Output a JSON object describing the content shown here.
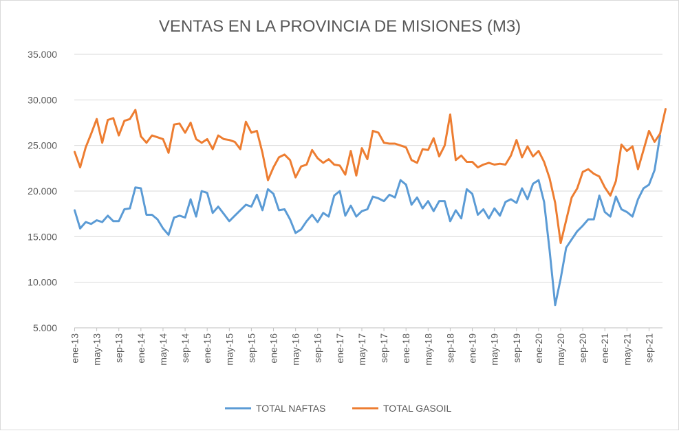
{
  "chart_data": {
    "type": "line",
    "title": "VENTAS EN LA PROVINCIA DE MISIONES (M3)",
    "ylim": [
      5000,
      35000
    ],
    "yticks": [
      5000,
      10000,
      15000,
      20000,
      25000,
      30000,
      35000
    ],
    "ytick_labels": [
      "5.000",
      "10.000",
      "15.000",
      "20.000",
      "25.000",
      "30.000",
      "35.000"
    ],
    "grid": true,
    "legend_position": "bottom-center",
    "xtick_labels": [
      "ene-13",
      "may-13",
      "sep-13",
      "ene-14",
      "may-14",
      "sep-14",
      "ene-15",
      "may-15",
      "sep-15",
      "ene-16",
      "may-16",
      "sep-16",
      "ene-17",
      "may-17",
      "sep-17",
      "ene-18",
      "may-18",
      "sep-18",
      "ene-19",
      "may-19",
      "sep-19",
      "ene-20",
      "may-20",
      "sep-20",
      "ene-21",
      "may-21",
      "sep-21"
    ],
    "series": [
      {
        "name": "TOTAL NAFTAS",
        "color": "#5b9bd5",
        "values": [
          17900,
          15900,
          16600,
          16400,
          16800,
          16600,
          17300,
          16700,
          16700,
          18000,
          18100,
          20400,
          20300,
          17400,
          17400,
          16900,
          15900,
          15200,
          17100,
          17300,
          17100,
          19100,
          17200,
          20000,
          19800,
          17600,
          18300,
          17500,
          16700,
          17300,
          17900,
          18500,
          18300,
          19600,
          17900,
          20200,
          19700,
          17900,
          18000,
          16900,
          15400,
          15800,
          16700,
          17400,
          16600,
          17600,
          17200,
          19500,
          20000,
          17300,
          18400,
          17200,
          17800,
          18000,
          19400,
          19200,
          18900,
          19600,
          19300,
          21200,
          20700,
          18500,
          19300,
          18100,
          18900,
          17800,
          18900,
          18900,
          16700,
          17900,
          17000,
          20200,
          19700,
          17400,
          18000,
          17000,
          18100,
          17300,
          18800,
          19100,
          18700,
          20300,
          19100,
          20800,
          21200,
          18800,
          13500,
          7500,
          10400,
          13800,
          14700,
          15600,
          16200,
          16900,
          16900,
          19500,
          17700,
          17200,
          19400,
          18000,
          17700,
          17200,
          19100,
          20300,
          20700,
          22300,
          26100
        ]
      },
      {
        "name": "TOTAL GASOIL",
        "color": "#ed7d31",
        "values": [
          24300,
          22600,
          24800,
          26300,
          27900,
          25300,
          27800,
          28000,
          26100,
          27700,
          27900,
          28900,
          26000,
          25300,
          26100,
          25900,
          25700,
          24200,
          27300,
          27400,
          26400,
          27500,
          25700,
          25300,
          25700,
          24600,
          26100,
          25700,
          25600,
          25400,
          24600,
          27600,
          26400,
          26600,
          24200,
          21200,
          22600,
          23700,
          24000,
          23400,
          21500,
          22700,
          22900,
          24500,
          23600,
          23100,
          23500,
          22900,
          22800,
          21800,
          24400,
          21700,
          24700,
          23500,
          26600,
          26400,
          25300,
          25200,
          25200,
          25000,
          24800,
          23400,
          23100,
          24600,
          24500,
          25800,
          23800,
          25000,
          28400,
          23400,
          23900,
          23200,
          23200,
          22600,
          22900,
          23100,
          22900,
          23000,
          22900,
          23900,
          25600,
          23700,
          24900,
          23800,
          24400,
          23200,
          21400,
          18700,
          14300,
          16800,
          19300,
          20300,
          22100,
          22400,
          21900,
          21600,
          20400,
          19500,
          21100,
          25100,
          24400,
          24900,
          22400,
          24500,
          26600,
          25400,
          26300,
          29000
        ]
      }
    ]
  }
}
